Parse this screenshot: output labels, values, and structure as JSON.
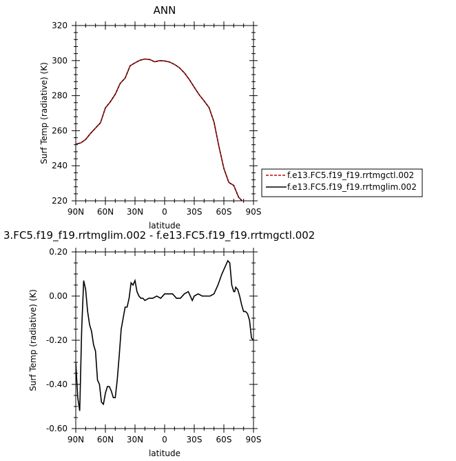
{
  "chart_data": [
    {
      "type": "line",
      "title": "ANN",
      "xlabel": "latitude",
      "ylabel": "Surf Temp (radiative) (K)",
      "x_ticks": [
        "90N",
        "60N",
        "30N",
        "0",
        "30S",
        "60S",
        "90S"
      ],
      "y_ticks": [
        "320",
        "300",
        "280",
        "260",
        "240",
        "220"
      ],
      "xlim": [
        90,
        -90
      ],
      "ylim": [
        220,
        320
      ],
      "grid": false,
      "legend_position": "right",
      "x": [
        90,
        85,
        80,
        75,
        70,
        65,
        60,
        55,
        50,
        45,
        40,
        35,
        30,
        25,
        20,
        15,
        10,
        5,
        0,
        -5,
        -10,
        -15,
        -20,
        -25,
        -30,
        -35,
        -40,
        -45,
        -50,
        -55,
        -60,
        -65,
        -70,
        -75,
        -80,
        -85,
        -90
      ],
      "series": [
        {
          "name": "f.e13.FC5.f19_f19.rrtmgctl.002",
          "color": "#cc0000",
          "dashed": true,
          "values": [
            252.4,
            253.0,
            255.0,
            258.5,
            261.5,
            264.5,
            273.0,
            276.5,
            280.8,
            287.0,
            290.0,
            297.0,
            298.7,
            300.2,
            300.9,
            300.6,
            299.3,
            300.0,
            299.8,
            299.2,
            297.8,
            295.9,
            293.0,
            289.2,
            284.8,
            280.5,
            277.0,
            273.2,
            265.0,
            251.0,
            238.5,
            230.5,
            228.8,
            222.0,
            219.2,
            219.0,
            219.0
          ]
        },
        {
          "name": "f.e13.FC5.f19_f19.rrtmglim.002",
          "color": "#000000",
          "dashed": false,
          "values": [
            252.4,
            253.0,
            255.0,
            258.5,
            261.5,
            264.5,
            273.0,
            276.5,
            280.8,
            287.0,
            290.0,
            297.0,
            298.7,
            300.2,
            300.9,
            300.6,
            299.3,
            300.0,
            299.8,
            299.2,
            297.8,
            295.9,
            293.0,
            289.2,
            284.8,
            280.5,
            277.0,
            273.2,
            265.0,
            251.0,
            238.5,
            230.5,
            228.8,
            222.0,
            219.2,
            219.0,
            219.0
          ]
        }
      ]
    },
    {
      "type": "line",
      "title": "3.FC5.f19_f19.rrtmglim.002 - f.e13.FC5.f19_f19.rrtmgctl.002",
      "xlabel": "latitude",
      "ylabel": "Surf Temp (radiative) (K)",
      "x_ticks": [
        "90N",
        "60N",
        "30N",
        "0",
        "30S",
        "60S",
        "90S"
      ],
      "y_ticks": [
        "0.20",
        "0.00",
        "-0.20",
        "-0.40",
        "-0.60"
      ],
      "xlim": [
        90,
        -90
      ],
      "ylim": [
        -0.6,
        0.2
      ],
      "grid": false,
      "x": [
        90,
        88,
        86,
        84,
        82,
        80,
        78,
        76,
        74,
        72,
        70,
        68,
        66,
        64,
        62,
        60,
        58,
        56,
        54,
        52,
        50,
        48,
        46,
        44,
        42,
        40,
        38,
        36,
        34,
        32,
        30,
        28,
        26,
        24,
        22,
        20,
        16,
        12,
        8,
        4,
        0,
        -4,
        -8,
        -12,
        -16,
        -20,
        -24,
        -28,
        -30,
        -34,
        -38,
        -42,
        -46,
        -50,
        -54,
        -58,
        -62,
        -64,
        -66,
        -68,
        -70,
        -71,
        -72,
        -74,
        -76,
        -78,
        -80,
        -82,
        -84,
        -86,
        -88,
        -90
      ],
      "series": [
        {
          "name": "",
          "color": "#000000",
          "values": [
            -0.3,
            -0.46,
            -0.52,
            -0.15,
            0.07,
            0.03,
            -0.07,
            -0.13,
            -0.16,
            -0.22,
            -0.25,
            -0.38,
            -0.4,
            -0.48,
            -0.49,
            -0.44,
            -0.41,
            -0.41,
            -0.43,
            -0.46,
            -0.46,
            -0.38,
            -0.27,
            -0.15,
            -0.1,
            -0.05,
            -0.05,
            -0.01,
            0.06,
            0.05,
            0.07,
            0.02,
            0.0,
            -0.01,
            -0.01,
            -0.02,
            -0.01,
            -0.01,
            0.0,
            -0.01,
            0.01,
            0.01,
            0.01,
            -0.01,
            -0.01,
            0.01,
            0.02,
            -0.02,
            0.0,
            0.01,
            0.0,
            0.0,
            0.0,
            0.01,
            0.05,
            0.1,
            0.14,
            0.16,
            0.15,
            0.05,
            0.02,
            0.02,
            0.04,
            0.03,
            0.0,
            -0.04,
            -0.07,
            -0.07,
            -0.08,
            -0.11,
            -0.19,
            -0.2
          ]
        }
      ]
    }
  ]
}
